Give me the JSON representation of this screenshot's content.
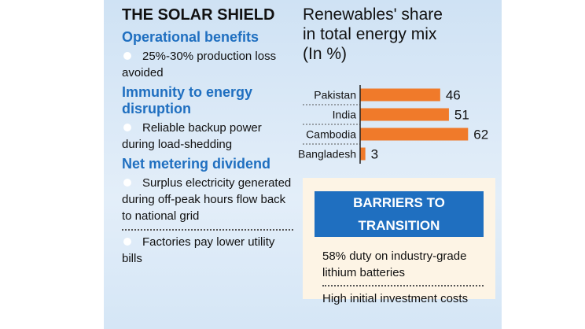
{
  "left": {
    "title": "THE SOLAR SHIELD",
    "sections": [
      {
        "heading": "Operational benefits",
        "items": [
          "25%-30% production loss avoided"
        ]
      },
      {
        "heading": "Immunity to energy disruption",
        "items": [
          "Reliable backup power during load-shedding"
        ]
      },
      {
        "heading": "Net metering dividend",
        "items": [
          "Surplus electricity generated during off-peak hours flow back to national grid",
          "Factories pay lower utility bills"
        ]
      }
    ]
  },
  "chart_data": {
    "type": "bar",
    "orientation": "horizontal",
    "title": "Renewables' share in total energy mix (In %)",
    "categories": [
      "Pakistan",
      "India",
      "Cambodia",
      "Bangladesh"
    ],
    "values": [
      46,
      51,
      62,
      3
    ],
    "color": "#f07a2a",
    "xlim": [
      0,
      70
    ]
  },
  "barriers": {
    "title": "BARRIERS TO TRANSITION",
    "items": [
      "58% duty on industry-grade lithium batteries",
      "High initial investment costs"
    ]
  }
}
